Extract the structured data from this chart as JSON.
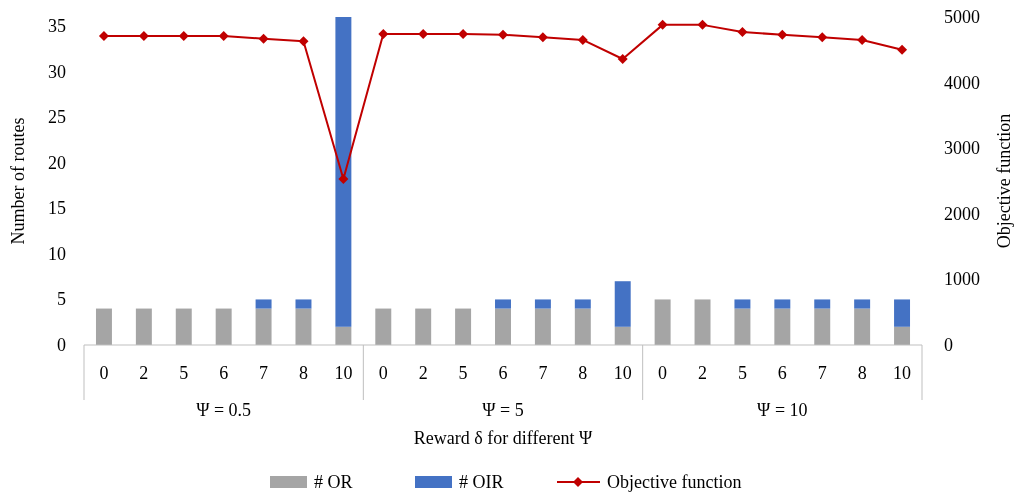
{
  "chart_data": {
    "type": "bar",
    "stacked": true,
    "xlabel": "Reward δ for different Ψ",
    "ylabel": "Number of routes",
    "y2label": "Objective function",
    "categories": [
      "0",
      "2",
      "5",
      "6",
      "7",
      "8",
      "10",
      "0",
      "2",
      "5",
      "6",
      "7",
      "8",
      "10",
      "0",
      "2",
      "5",
      "6",
      "7",
      "8",
      "10"
    ],
    "annotations": [
      "Ψ = 0.5",
      "Ψ = 5",
      "Ψ = 10"
    ],
    "series": [
      {
        "name": "# OR",
        "color": "#a5a5a5",
        "values": [
          4,
          4,
          4,
          4,
          4,
          4,
          2,
          4,
          4,
          4,
          4,
          4,
          4,
          2,
          5,
          5,
          4,
          4,
          4,
          4,
          2
        ]
      },
      {
        "name": "# OIR",
        "color": "#4472c4",
        "values": [
          0,
          0,
          0,
          0,
          1,
          1,
          34,
          0,
          0,
          0,
          1,
          1,
          1,
          5,
          0,
          0,
          1,
          1,
          1,
          1,
          3
        ]
      },
      {
        "name": "Objective function",
        "type": "line",
        "axis": "y2",
        "color": "#c00000",
        "marker": "diamond",
        "values": [
          4710,
          4710,
          4710,
          4710,
          4670,
          4630,
          2530,
          4740,
          4740,
          4740,
          4730,
          4690,
          4650,
          4360,
          4880,
          4880,
          4770,
          4730,
          4690,
          4650,
          4500
        ]
      }
    ],
    "ylim": [
      0,
      36
    ],
    "yticks": [
      0,
      5,
      10,
      15,
      20,
      25,
      30,
      35
    ],
    "y2lim": [
      0,
      5000
    ],
    "y2ticks": [
      0,
      1000,
      2000,
      3000,
      4000,
      5000
    ],
    "legend": "bottom"
  }
}
